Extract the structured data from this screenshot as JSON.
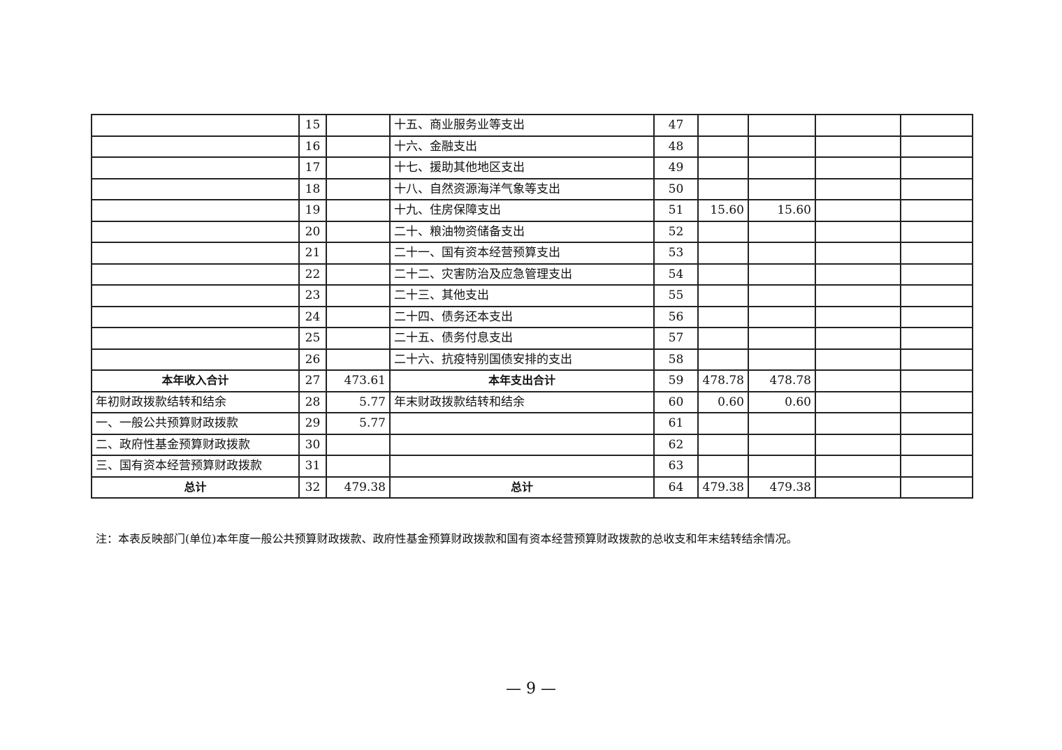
{
  "rows": [
    {
      "left_label": "",
      "left_no": "15",
      "left_amount": "",
      "right_label": "十五、商业服务业等支出",
      "right_no": "47",
      "c1": "",
      "c2": "",
      "c3": "",
      "c4": ""
    },
    {
      "left_label": "",
      "left_no": "16",
      "left_amount": "",
      "right_label": "十六、金融支出",
      "right_no": "48",
      "c1": "",
      "c2": "",
      "c3": "",
      "c4": ""
    },
    {
      "left_label": "",
      "left_no": "17",
      "left_amount": "",
      "right_label": "十七、援助其他地区支出",
      "right_no": "49",
      "c1": "",
      "c2": "",
      "c3": "",
      "c4": ""
    },
    {
      "left_label": "",
      "left_no": "18",
      "left_amount": "",
      "right_label": "十八、自然资源海洋气象等支出",
      "right_no": "50",
      "c1": "",
      "c2": "",
      "c3": "",
      "c4": ""
    },
    {
      "left_label": "",
      "left_no": "19",
      "left_amount": "",
      "right_label": "十九、住房保障支出",
      "right_no": "51",
      "c1": "15.60",
      "c2": "15.60",
      "c3": "",
      "c4": ""
    },
    {
      "left_label": "",
      "left_no": "20",
      "left_amount": "",
      "right_label": "二十、粮油物资储备支出",
      "right_no": "52",
      "c1": "",
      "c2": "",
      "c3": "",
      "c4": ""
    },
    {
      "left_label": "",
      "left_no": "21",
      "left_amount": "",
      "right_label": "二十一、国有资本经营预算支出",
      "right_no": "53",
      "c1": "",
      "c2": "",
      "c3": "",
      "c4": ""
    },
    {
      "left_label": "",
      "left_no": "22",
      "left_amount": "",
      "right_label": "二十二、灾害防治及应急管理支出",
      "right_no": "54",
      "c1": "",
      "c2": "",
      "c3": "",
      "c4": ""
    },
    {
      "left_label": "",
      "left_no": "23",
      "left_amount": "",
      "right_label": "二十三、其他支出",
      "right_no": "55",
      "c1": "",
      "c2": "",
      "c3": "",
      "c4": ""
    },
    {
      "left_label": "",
      "left_no": "24",
      "left_amount": "",
      "right_label": "二十四、债务还本支出",
      "right_no": "56",
      "c1": "",
      "c2": "",
      "c3": "",
      "c4": ""
    },
    {
      "left_label": "",
      "left_no": "25",
      "left_amount": "",
      "right_label": "二十五、债务付息支出",
      "right_no": "57",
      "c1": "",
      "c2": "",
      "c3": "",
      "c4": ""
    },
    {
      "left_label": "",
      "left_no": "26",
      "left_amount": "",
      "right_label": "二十六、抗疫特别国债安排的支出",
      "right_no": "58",
      "c1": "",
      "c2": "",
      "c3": "",
      "c4": ""
    },
    {
      "left_label": "本年收入合计",
      "left_no": "27",
      "left_amount": "473.61",
      "right_label": "本年支出合计",
      "right_no": "59",
      "c1": "478.78",
      "c2": "478.78",
      "c3": "",
      "c4": "",
      "bold": true
    },
    {
      "left_label": "年初财政拨款结转和结余",
      "left_no": "28",
      "left_amount": "5.77",
      "right_label": "年末财政拨款结转和结余",
      "right_no": "60",
      "c1": "0.60",
      "c2": "0.60",
      "c3": "",
      "c4": ""
    },
    {
      "left_label": "一、一般公共预算财政拨款",
      "left_no": "29",
      "left_amount": "5.77",
      "right_label": "",
      "right_no": "61",
      "c1": "",
      "c2": "",
      "c3": "",
      "c4": ""
    },
    {
      "left_label": "二、政府性基金预算财政拨款",
      "left_no": "30",
      "left_amount": "",
      "right_label": "",
      "right_no": "62",
      "c1": "",
      "c2": "",
      "c3": "",
      "c4": ""
    },
    {
      "left_label": "三、国有资本经营预算财政拨款",
      "left_no": "31",
      "left_amount": "",
      "right_label": "",
      "right_no": "63",
      "c1": "",
      "c2": "",
      "c3": "",
      "c4": ""
    },
    {
      "left_label": "总计",
      "left_no": "32",
      "left_amount": "479.38",
      "right_label": "总计",
      "right_no": "64",
      "c1": "479.38",
      "c2": "479.38",
      "c3": "",
      "c4": "",
      "bold": true
    }
  ],
  "note": "注：本表反映部门(单位)本年度一般公共预算财政拨款、政府性基金预算财政拨款和国有资本经营预算财政拨款的总收支和年末结转结余情况。",
  "page_number": "— 9 —"
}
